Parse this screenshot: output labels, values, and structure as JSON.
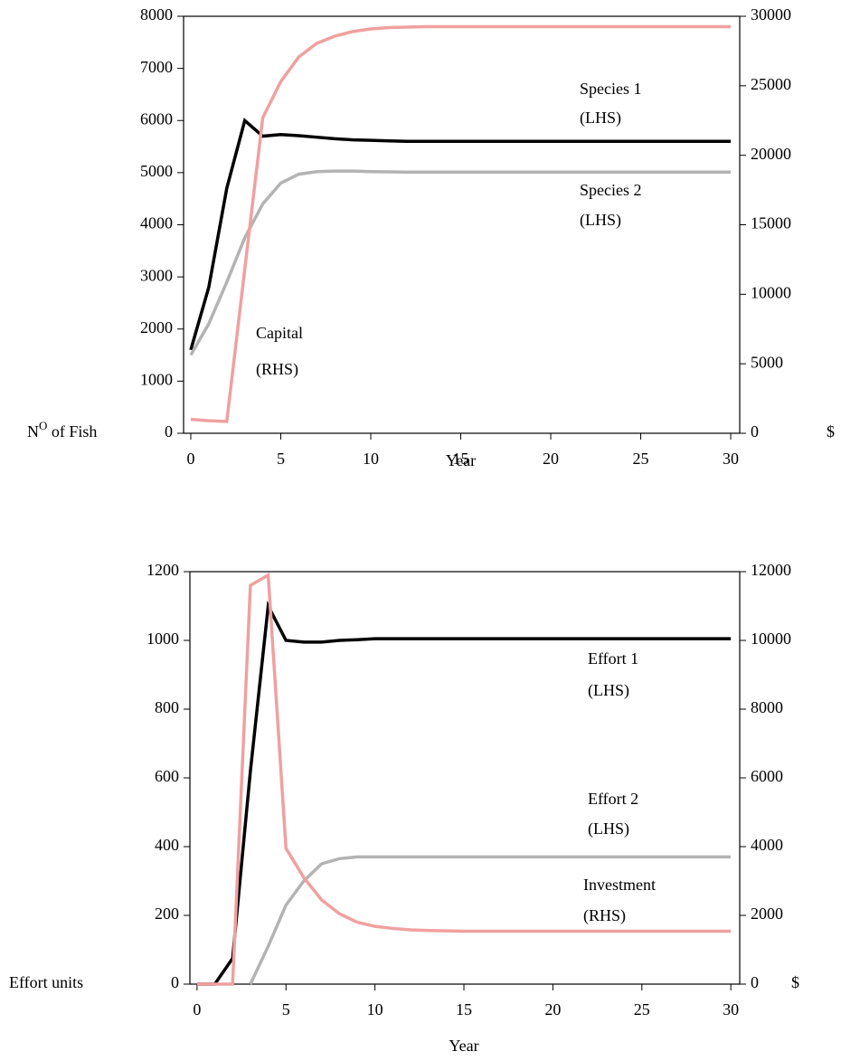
{
  "chart_data": [
    {
      "type": "line",
      "x": [
        0,
        1,
        2,
        3,
        4,
        5,
        6,
        7,
        8,
        9,
        10,
        11,
        12,
        13,
        14,
        15,
        16,
        17,
        18,
        19,
        20,
        21,
        22,
        23,
        24,
        25,
        26,
        27,
        28,
        29,
        30
      ],
      "xlim": [
        -0.4,
        30.5
      ],
      "xticks": [
        0,
        5,
        10,
        15,
        20,
        25,
        30
      ],
      "ylim": [
        0,
        8000
      ],
      "yticks": [
        0,
        1000,
        2000,
        3000,
        4000,
        5000,
        6000,
        7000,
        8000
      ],
      "y2lim": [
        0,
        30000
      ],
      "y2ticks": [
        0,
        5000,
        10000,
        15000,
        20000,
        25000,
        30000
      ],
      "xlabel": "Year",
      "ylabel": [
        "N",
        "O",
        " of Fish"
      ],
      "y2label": "$",
      "series": [
        {
          "name": "Species 1",
          "color": "#000000",
          "values": [
            1600,
            2800,
            4700,
            6000,
            5700,
            5730,
            5710,
            5680,
            5650,
            5630,
            5620,
            5610,
            5600,
            5600,
            5600,
            5600,
            5600,
            5600,
            5600,
            5600,
            5600,
            5600,
            5600,
            5600,
            5600,
            5600,
            5600,
            5600,
            5600,
            5600,
            5600
          ]
        },
        {
          "name": "Species 2",
          "color": "#b3b3b3",
          "values": [
            1500,
            2100,
            2900,
            3750,
            4400,
            4800,
            4970,
            5020,
            5030,
            5030,
            5020,
            5015,
            5010,
            5010,
            5010,
            5010,
            5010,
            5010,
            5010,
            5010,
            5010,
            5010,
            5010,
            5010,
            5010,
            5010,
            5010,
            5010,
            5010,
            5010,
            5010
          ]
        },
        {
          "name": "Capital",
          "color": "#f0a0a0",
          "axis": "y2",
          "values": [
            1000,
            900,
            850,
            11800,
            22700,
            25300,
            27070,
            28050,
            28570,
            28900,
            29090,
            29190,
            29220,
            29250,
            29250,
            29250,
            29250,
            29250,
            29250,
            29250,
            29250,
            29250,
            29250,
            29250,
            29250,
            29250,
            29250,
            29250,
            29250,
            29250,
            29250
          ]
        }
      ],
      "annotations": [
        [
          "Species 1",
          "(LHS)"
        ],
        [
          "Species 2",
          "(LHS)"
        ],
        [
          "Capital",
          "(RHS)"
        ]
      ]
    },
    {
      "type": "line",
      "x": [
        0,
        1,
        2,
        3,
        4,
        5,
        6,
        7,
        8,
        9,
        10,
        11,
        12,
        13,
        14,
        15,
        16,
        17,
        18,
        19,
        20,
        21,
        22,
        23,
        24,
        25,
        26,
        27,
        28,
        29,
        30
      ],
      "xlim": [
        -0.4,
        30.5
      ],
      "xticks": [
        0,
        5,
        10,
        15,
        20,
        25,
        30
      ],
      "ylim": [
        0,
        1200
      ],
      "yticks": [
        0,
        200,
        400,
        600,
        800,
        1000,
        1200
      ],
      "y2lim": [
        0,
        12000
      ],
      "y2ticks": [
        0,
        2000,
        4000,
        6000,
        8000,
        10000,
        12000
      ],
      "xlabel": "Year",
      "ylabel": [
        "Effort units"
      ],
      "y2label": "$",
      "series": [
        {
          "name": "Effort 1",
          "color": "#000000",
          "values": [
            0,
            0,
            75,
            620,
            1100,
            1000,
            995,
            995,
            1000,
            1002,
            1005,
            1005,
            1005,
            1005,
            1005,
            1005,
            1005,
            1005,
            1005,
            1005,
            1005,
            1005,
            1005,
            1005,
            1005,
            1005,
            1005,
            1005,
            1005,
            1005,
            1005
          ]
        },
        {
          "name": "Effort 2",
          "color": "#b3b3b3",
          "values": [
            null,
            null,
            null,
            0,
            110,
            230,
            300,
            350,
            365,
            370,
            370,
            370,
            370,
            370,
            370,
            370,
            370,
            370,
            370,
            370,
            370,
            370,
            370,
            370,
            370,
            370,
            370,
            370,
            370,
            370,
            370
          ]
        },
        {
          "name": "Investment",
          "color": "#f0a0a0",
          "axis": "y2",
          "values": [
            0,
            0,
            0,
            11600,
            11900,
            3950,
            3100,
            2450,
            2050,
            1800,
            1680,
            1620,
            1580,
            1560,
            1550,
            1540,
            1540,
            1540,
            1540,
            1540,
            1540,
            1540,
            1540,
            1540,
            1540,
            1540,
            1540,
            1540,
            1540,
            1540,
            1540
          ]
        }
      ],
      "annotations": [
        [
          "Effort 1",
          "(LHS)"
        ],
        [
          "Effort 2",
          "(LHS)"
        ],
        [
          "Investment",
          "(RHS)"
        ]
      ]
    }
  ]
}
